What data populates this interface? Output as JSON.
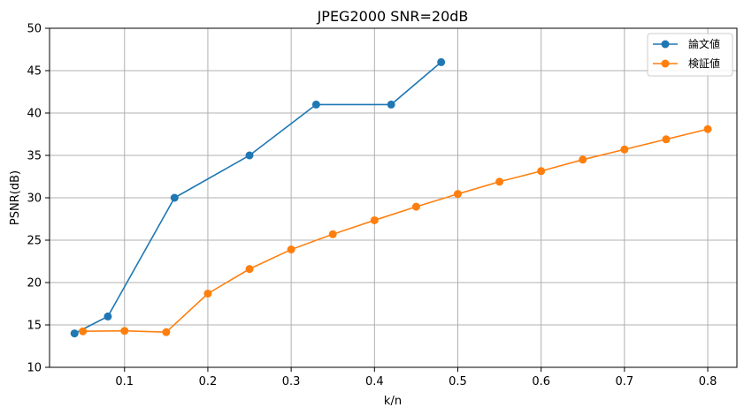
{
  "chart_data": {
    "type": "line",
    "title": "JPEG2000 SNR=20dB",
    "xlabel": "k/n",
    "ylabel": "PSNR(dB)",
    "xlim": [
      0.01,
      0.835
    ],
    "ylim": [
      10,
      50
    ],
    "xticks": [
      0.1,
      0.2,
      0.3,
      0.4,
      0.5,
      0.6,
      0.7,
      0.8
    ],
    "yticks": [
      10,
      15,
      20,
      25,
      30,
      35,
      40,
      45,
      50
    ],
    "grid": true,
    "legend_position": "top-right",
    "series": [
      {
        "name": "論文値",
        "color": "#1f77b4",
        "x": [
          0.04,
          0.08,
          0.16,
          0.25,
          0.33,
          0.42,
          0.48
        ],
        "y": [
          14,
          16,
          30,
          35,
          41,
          41,
          46
        ]
      },
      {
        "name": "検証値",
        "color": "#ff7f0e",
        "x": [
          0.05,
          0.1,
          0.15,
          0.2,
          0.25,
          0.3,
          0.35,
          0.4,
          0.45,
          0.5,
          0.55,
          0.6,
          0.65,
          0.7,
          0.75,
          0.8
        ],
        "y": [
          14.25,
          14.3,
          14.15,
          18.7,
          21.6,
          23.9,
          25.7,
          27.35,
          28.95,
          30.45,
          31.9,
          33.15,
          34.5,
          35.7,
          36.9,
          38.1
        ]
      }
    ]
  }
}
